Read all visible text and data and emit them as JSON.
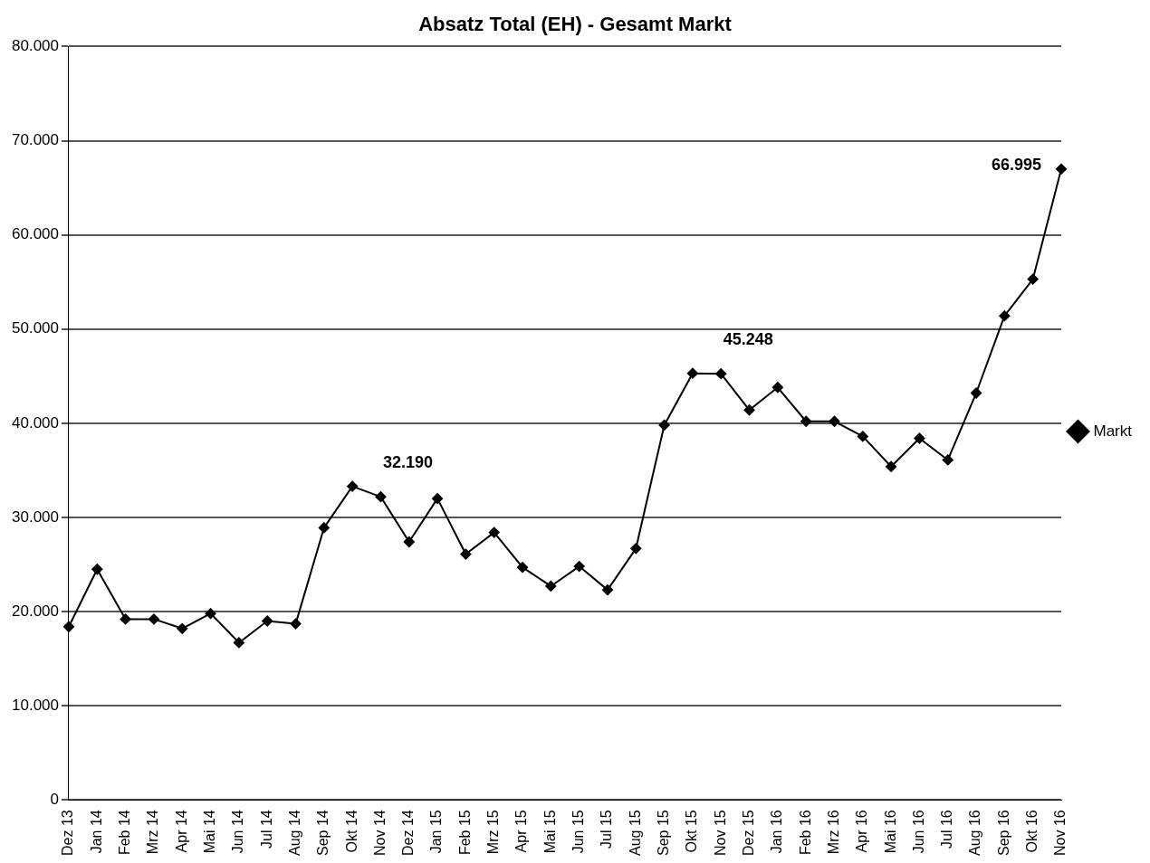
{
  "chart_data": {
    "type": "line",
    "title": "Absatz Total (EH) - Gesamt Markt",
    "categories": [
      "Dez 13",
      "Jan 14",
      "Feb 14",
      "Mrz 14",
      "Apr 14",
      "Mai 14",
      "Jun 14",
      "Jul 14",
      "Aug 14",
      "Sep 14",
      "Okt 14",
      "Nov 14",
      "Dez 14",
      "Jan 15",
      "Feb 15",
      "Mrz 15",
      "Apr 15",
      "Mai 15",
      "Jun 15",
      "Jul 15",
      "Aug 15",
      "Sep 15",
      "Okt 15",
      "Nov 15",
      "Dez 15",
      "Jan 16",
      "Feb 16",
      "Mrz 16",
      "Apr 16",
      "Mai 16",
      "Jun 16",
      "Jul 16",
      "Aug 16",
      "Sep 16",
      "Okt 16",
      "Nov 16"
    ],
    "series": [
      {
        "name": "Markt",
        "color": "#000000",
        "values": [
          18400,
          24500,
          19200,
          19200,
          18200,
          19800,
          16700,
          19000,
          18700,
          28900,
          33300,
          32190,
          27400,
          32000,
          26100,
          28400,
          24700,
          22700,
          24800,
          22300,
          26700,
          39800,
          45300,
          45248,
          41400,
          43800,
          40200,
          40200,
          38600,
          35400,
          38400,
          36100,
          43200,
          51400,
          55300,
          66995
        ],
        "value_labels": [
          null,
          null,
          null,
          null,
          null,
          null,
          null,
          null,
          null,
          null,
          null,
          "32.190",
          null,
          null,
          null,
          null,
          null,
          null,
          null,
          null,
          null,
          null,
          null,
          "45.248",
          null,
          null,
          null,
          null,
          null,
          null,
          null,
          null,
          null,
          null,
          null,
          "66.995"
        ]
      }
    ],
    "ylim": [
      0,
      80000
    ],
    "yticks": [
      {
        "value": 0,
        "label": "0"
      },
      {
        "value": 10000,
        "label": "10.000"
      },
      {
        "value": 20000,
        "label": "20.000"
      },
      {
        "value": 30000,
        "label": "30.000"
      },
      {
        "value": 40000,
        "label": "40.000"
      },
      {
        "value": 50000,
        "label": "50.000"
      },
      {
        "value": 60000,
        "label": "60.000"
      },
      {
        "value": 70000,
        "label": "70.000"
      },
      {
        "value": 80000,
        "label": "80.000"
      }
    ],
    "grid": "y",
    "legend": "right",
    "marker": "diamond",
    "line_style": "solid"
  }
}
